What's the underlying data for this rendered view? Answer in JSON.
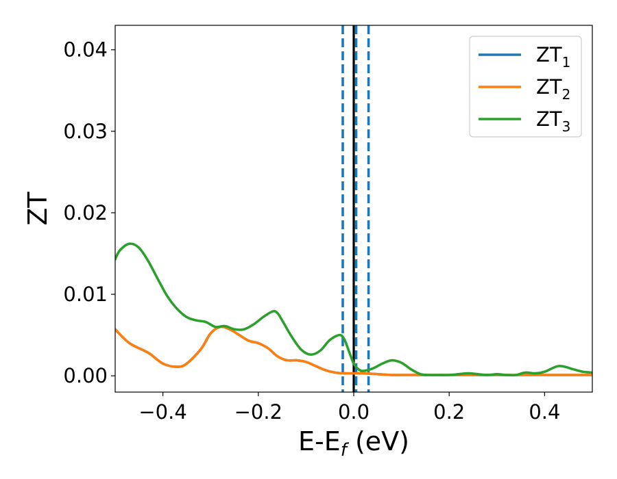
{
  "chart_data": {
    "type": "line",
    "xlabel": {
      "main": "E-E",
      "sub": "f",
      "suffix": " (eV)"
    },
    "ylabel": "ZT",
    "xlim": [
      -0.5,
      0.5
    ],
    "ylim": [
      -0.002,
      0.043
    ],
    "x_ticks": [
      -0.4,
      -0.2,
      0.0,
      0.2,
      0.4
    ],
    "x_tick_labels": [
      "−0.4",
      "−0.2",
      "0.0",
      "0.2",
      "0.4"
    ],
    "y_ticks": [
      0.0,
      0.01,
      0.02,
      0.03,
      0.04
    ],
    "y_tick_labels": [
      "0.00",
      "0.01",
      "0.02",
      "0.03",
      "0.04"
    ],
    "grid": false,
    "legend_position": "top-right",
    "vertical_lines": [
      {
        "x": 0.0,
        "color": "#000000",
        "style": "solid"
      },
      {
        "x": -0.023,
        "color": "#1f77b4",
        "style": "dashed"
      },
      {
        "x": 0.005,
        "color": "#1f77b4",
        "style": "dashed"
      },
      {
        "x": 0.031,
        "color": "#1f77b4",
        "style": "dashed"
      }
    ],
    "series": [
      {
        "name": "ZT",
        "name_sub": "1",
        "color": "#1f77b4",
        "x": [
          -0.5,
          -0.47,
          -0.43,
          -0.4,
          -0.37,
          -0.35,
          -0.32,
          -0.3,
          -0.28,
          -0.26,
          -0.24,
          -0.22,
          -0.2,
          -0.18,
          -0.16,
          -0.14,
          -0.12,
          -0.1,
          -0.08,
          -0.06,
          -0.04,
          -0.02,
          0.0,
          0.02,
          0.05,
          0.08,
          0.1,
          0.12,
          0.15,
          0.2,
          0.25,
          0.3,
          0.35,
          0.4,
          0.45,
          0.5
        ],
        "y": [
          0.0057,
          0.004,
          0.0028,
          0.0015,
          0.0011,
          0.0015,
          0.0033,
          0.0052,
          0.006,
          0.0057,
          0.005,
          0.0043,
          0.004,
          0.0034,
          0.0024,
          0.0019,
          0.0019,
          0.0017,
          0.0012,
          0.0007,
          0.0004,
          0.0003,
          0.0003,
          0.0003,
          0.0002,
          0.0001,
          0.0001,
          0.0001,
          0.0001,
          0.0001,
          0.0001,
          0.0001,
          0.0001,
          0.0001,
          0.0001,
          0.0001
        ]
      },
      {
        "name": "ZT",
        "name_sub": "2",
        "color": "#ff7f0e",
        "x": [
          -0.5,
          -0.47,
          -0.43,
          -0.4,
          -0.37,
          -0.35,
          -0.32,
          -0.3,
          -0.28,
          -0.26,
          -0.24,
          -0.22,
          -0.2,
          -0.18,
          -0.16,
          -0.14,
          -0.12,
          -0.1,
          -0.08,
          -0.06,
          -0.04,
          -0.02,
          0.0,
          0.02,
          0.05,
          0.08,
          0.1,
          0.12,
          0.15,
          0.2,
          0.25,
          0.3,
          0.35,
          0.4,
          0.45,
          0.5
        ],
        "y": [
          0.0057,
          0.004,
          0.0028,
          0.0015,
          0.0011,
          0.0015,
          0.0033,
          0.0052,
          0.006,
          0.0057,
          0.005,
          0.0043,
          0.004,
          0.0034,
          0.0024,
          0.0019,
          0.0019,
          0.0017,
          0.0012,
          0.0007,
          0.0004,
          0.0003,
          0.0003,
          0.0003,
          0.0002,
          0.0001,
          0.0001,
          0.0001,
          0.0001,
          0.0001,
          0.0001,
          0.0001,
          0.0001,
          0.0001,
          0.0001,
          0.0001
        ]
      },
      {
        "name": "ZT",
        "name_sub": "3",
        "color": "#2ca02c",
        "x": [
          -0.5,
          -0.49,
          -0.47,
          -0.45,
          -0.43,
          -0.41,
          -0.39,
          -0.37,
          -0.35,
          -0.33,
          -0.31,
          -0.29,
          -0.27,
          -0.25,
          -0.23,
          -0.21,
          -0.19,
          -0.17,
          -0.16,
          -0.15,
          -0.13,
          -0.11,
          -0.09,
          -0.07,
          -0.05,
          -0.03,
          -0.02,
          -0.01,
          0.0,
          0.01,
          0.02,
          0.04,
          0.06,
          0.08,
          0.1,
          0.12,
          0.14,
          0.16,
          0.18,
          0.2,
          0.22,
          0.24,
          0.26,
          0.28,
          0.3,
          0.32,
          0.34,
          0.36,
          0.38,
          0.4,
          0.43,
          0.46,
          0.48,
          0.5
        ],
        "y": [
          0.0143,
          0.0154,
          0.0162,
          0.0157,
          0.014,
          0.0118,
          0.0097,
          0.0082,
          0.0072,
          0.0068,
          0.0066,
          0.006,
          0.0061,
          0.0057,
          0.0057,
          0.0063,
          0.0072,
          0.0079,
          0.0077,
          0.0068,
          0.0048,
          0.0032,
          0.0026,
          0.0031,
          0.0044,
          0.005,
          0.0045,
          0.003,
          0.0015,
          0.0008,
          0.0006,
          0.0009,
          0.0015,
          0.0019,
          0.0016,
          0.0008,
          0.0002,
          0.0001,
          0.0001,
          0.0001,
          0.0002,
          0.0003,
          0.0002,
          0.0001,
          0.0002,
          0.0001,
          0.0001,
          0.0004,
          0.0003,
          0.0005,
          0.0012,
          0.0008,
          0.0005,
          0.0004
        ]
      }
    ]
  }
}
